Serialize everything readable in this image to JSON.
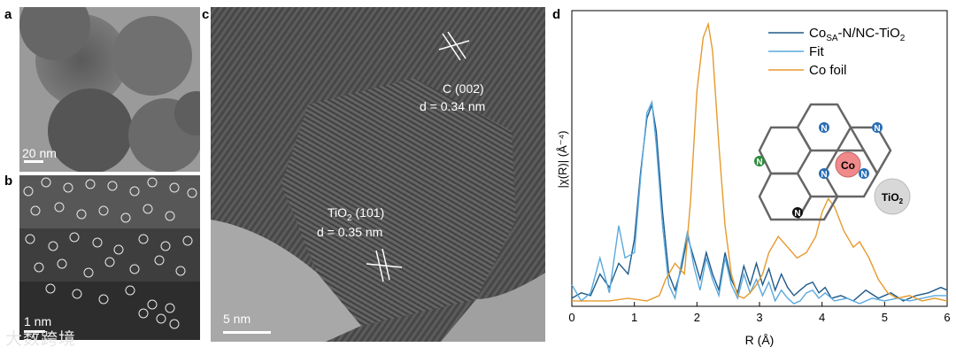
{
  "panels": {
    "a": {
      "letter": "a",
      "scale_bar": "20 nm"
    },
    "b": {
      "letter": "b",
      "scale_bar": "1 nm"
    },
    "c": {
      "letter": "c",
      "scale_bar": "5 nm",
      "labels": [
        {
          "title": "C (002)",
          "subtitle": "d = 0.34 nm"
        },
        {
          "title_main": "TiO",
          "title_sub": "2",
          "title_rest": " (101)",
          "subtitle": "d = 0.35 nm"
        }
      ]
    },
    "d": {
      "letter": "d"
    }
  },
  "watermark": "大数跨境",
  "chart_data": {
    "type": "line",
    "title": "",
    "xlabel": "R (Å)",
    "ylabel": "|χ(R)| (Å⁻⁴)",
    "xlim": [
      0,
      6
    ],
    "xticks": [
      "0",
      "1",
      "2",
      "3",
      "4",
      "5",
      "6"
    ],
    "legend": "top-right",
    "legend_entries": [
      {
        "main": "Co",
        "sub": "SA",
        "rest": "-N/NC-TiO",
        "sub2": "2",
        "color": "#1f5a8a"
      },
      {
        "main": "Fit",
        "color": "#5aa9dd"
      },
      {
        "main": "Co foil",
        "color": "#e69a2e"
      }
    ],
    "series": [
      {
        "name": "CoSA-N/NC-TiO2",
        "color": "#1f5a8a",
        "x": [
          0,
          0.15,
          0.3,
          0.45,
          0.6,
          0.75,
          0.9,
          1.0,
          1.1,
          1.2,
          1.28,
          1.35,
          1.45,
          1.55,
          1.65,
          1.75,
          1.85,
          1.95,
          2.05,
          2.15,
          2.25,
          2.35,
          2.45,
          2.55,
          2.65,
          2.75,
          2.85,
          2.95,
          3.05,
          3.15,
          3.25,
          3.35,
          3.45,
          3.55,
          3.65,
          3.75,
          3.85,
          3.95,
          4.05,
          4.15,
          4.3,
          4.5,
          4.7,
          4.9,
          5.1,
          5.3,
          5.5,
          5.7,
          5.9,
          6.0
        ],
        "y": [
          0.03,
          0.05,
          0.04,
          0.12,
          0.07,
          0.16,
          0.12,
          0.25,
          0.5,
          0.7,
          0.75,
          0.65,
          0.35,
          0.12,
          0.06,
          0.14,
          0.26,
          0.18,
          0.1,
          0.2,
          0.12,
          0.06,
          0.2,
          0.1,
          0.05,
          0.15,
          0.08,
          0.16,
          0.08,
          0.14,
          0.06,
          0.12,
          0.07,
          0.04,
          0.06,
          0.08,
          0.09,
          0.05,
          0.07,
          0.03,
          0.04,
          0.02,
          0.06,
          0.03,
          0.05,
          0.02,
          0.04,
          0.05,
          0.07,
          0.06
        ]
      },
      {
        "name": "Fit",
        "color": "#5aa9dd",
        "x": [
          0,
          0.15,
          0.3,
          0.45,
          0.6,
          0.75,
          0.85,
          1.0,
          1.1,
          1.2,
          1.28,
          1.35,
          1.45,
          1.55,
          1.65,
          1.75,
          1.85,
          1.95,
          2.05,
          2.15,
          2.25,
          2.35,
          2.45,
          2.55,
          2.65,
          2.75,
          2.85,
          2.95,
          3.05,
          3.15,
          3.25,
          3.35,
          3.45,
          3.55,
          3.65,
          3.75,
          3.85,
          3.95,
          4.05,
          4.2,
          4.4,
          4.6,
          4.8,
          5.0,
          5.2,
          5.4,
          5.6,
          5.8,
          6.0
        ],
        "y": [
          0.08,
          0.02,
          0.05,
          0.18,
          0.05,
          0.3,
          0.18,
          0.2,
          0.48,
          0.72,
          0.76,
          0.6,
          0.3,
          0.08,
          0.03,
          0.16,
          0.28,
          0.15,
          0.06,
          0.18,
          0.1,
          0.04,
          0.18,
          0.08,
          0.03,
          0.12,
          0.05,
          0.1,
          0.04,
          0.09,
          0.02,
          0.06,
          0.03,
          0.01,
          0.02,
          0.05,
          0.06,
          0.03,
          0.05,
          0.02,
          0.03,
          0.01,
          0.03,
          0.02,
          0.03,
          0.02,
          0.03,
          0.04,
          0.04
        ]
      },
      {
        "name": "Co foil",
        "color": "#e69a2e",
        "x": [
          0,
          0.3,
          0.6,
          0.9,
          1.2,
          1.4,
          1.5,
          1.65,
          1.8,
          1.9,
          2.0,
          2.1,
          2.18,
          2.25,
          2.35,
          2.45,
          2.55,
          2.65,
          2.75,
          2.85,
          2.95,
          3.05,
          3.15,
          3.3,
          3.45,
          3.6,
          3.75,
          3.9,
          4.0,
          4.1,
          4.2,
          4.35,
          4.5,
          4.6,
          4.75,
          4.9,
          5.05,
          5.2,
          5.4,
          5.6,
          5.8,
          6.0
        ],
        "y": [
          0.02,
          0.02,
          0.02,
          0.03,
          0.02,
          0.04,
          0.1,
          0.16,
          0.12,
          0.4,
          0.8,
          1.0,
          1.05,
          0.95,
          0.6,
          0.3,
          0.12,
          0.04,
          0.03,
          0.05,
          0.08,
          0.12,
          0.2,
          0.26,
          0.22,
          0.18,
          0.2,
          0.26,
          0.35,
          0.4,
          0.37,
          0.28,
          0.22,
          0.24,
          0.18,
          0.1,
          0.05,
          0.03,
          0.04,
          0.02,
          0.03,
          0.02
        ]
      }
    ]
  },
  "structure": {
    "atoms": [
      "N",
      "N",
      "N",
      "N",
      "N",
      "N"
    ],
    "center": "Co",
    "support_main": "TiO",
    "support_sub": "2"
  }
}
